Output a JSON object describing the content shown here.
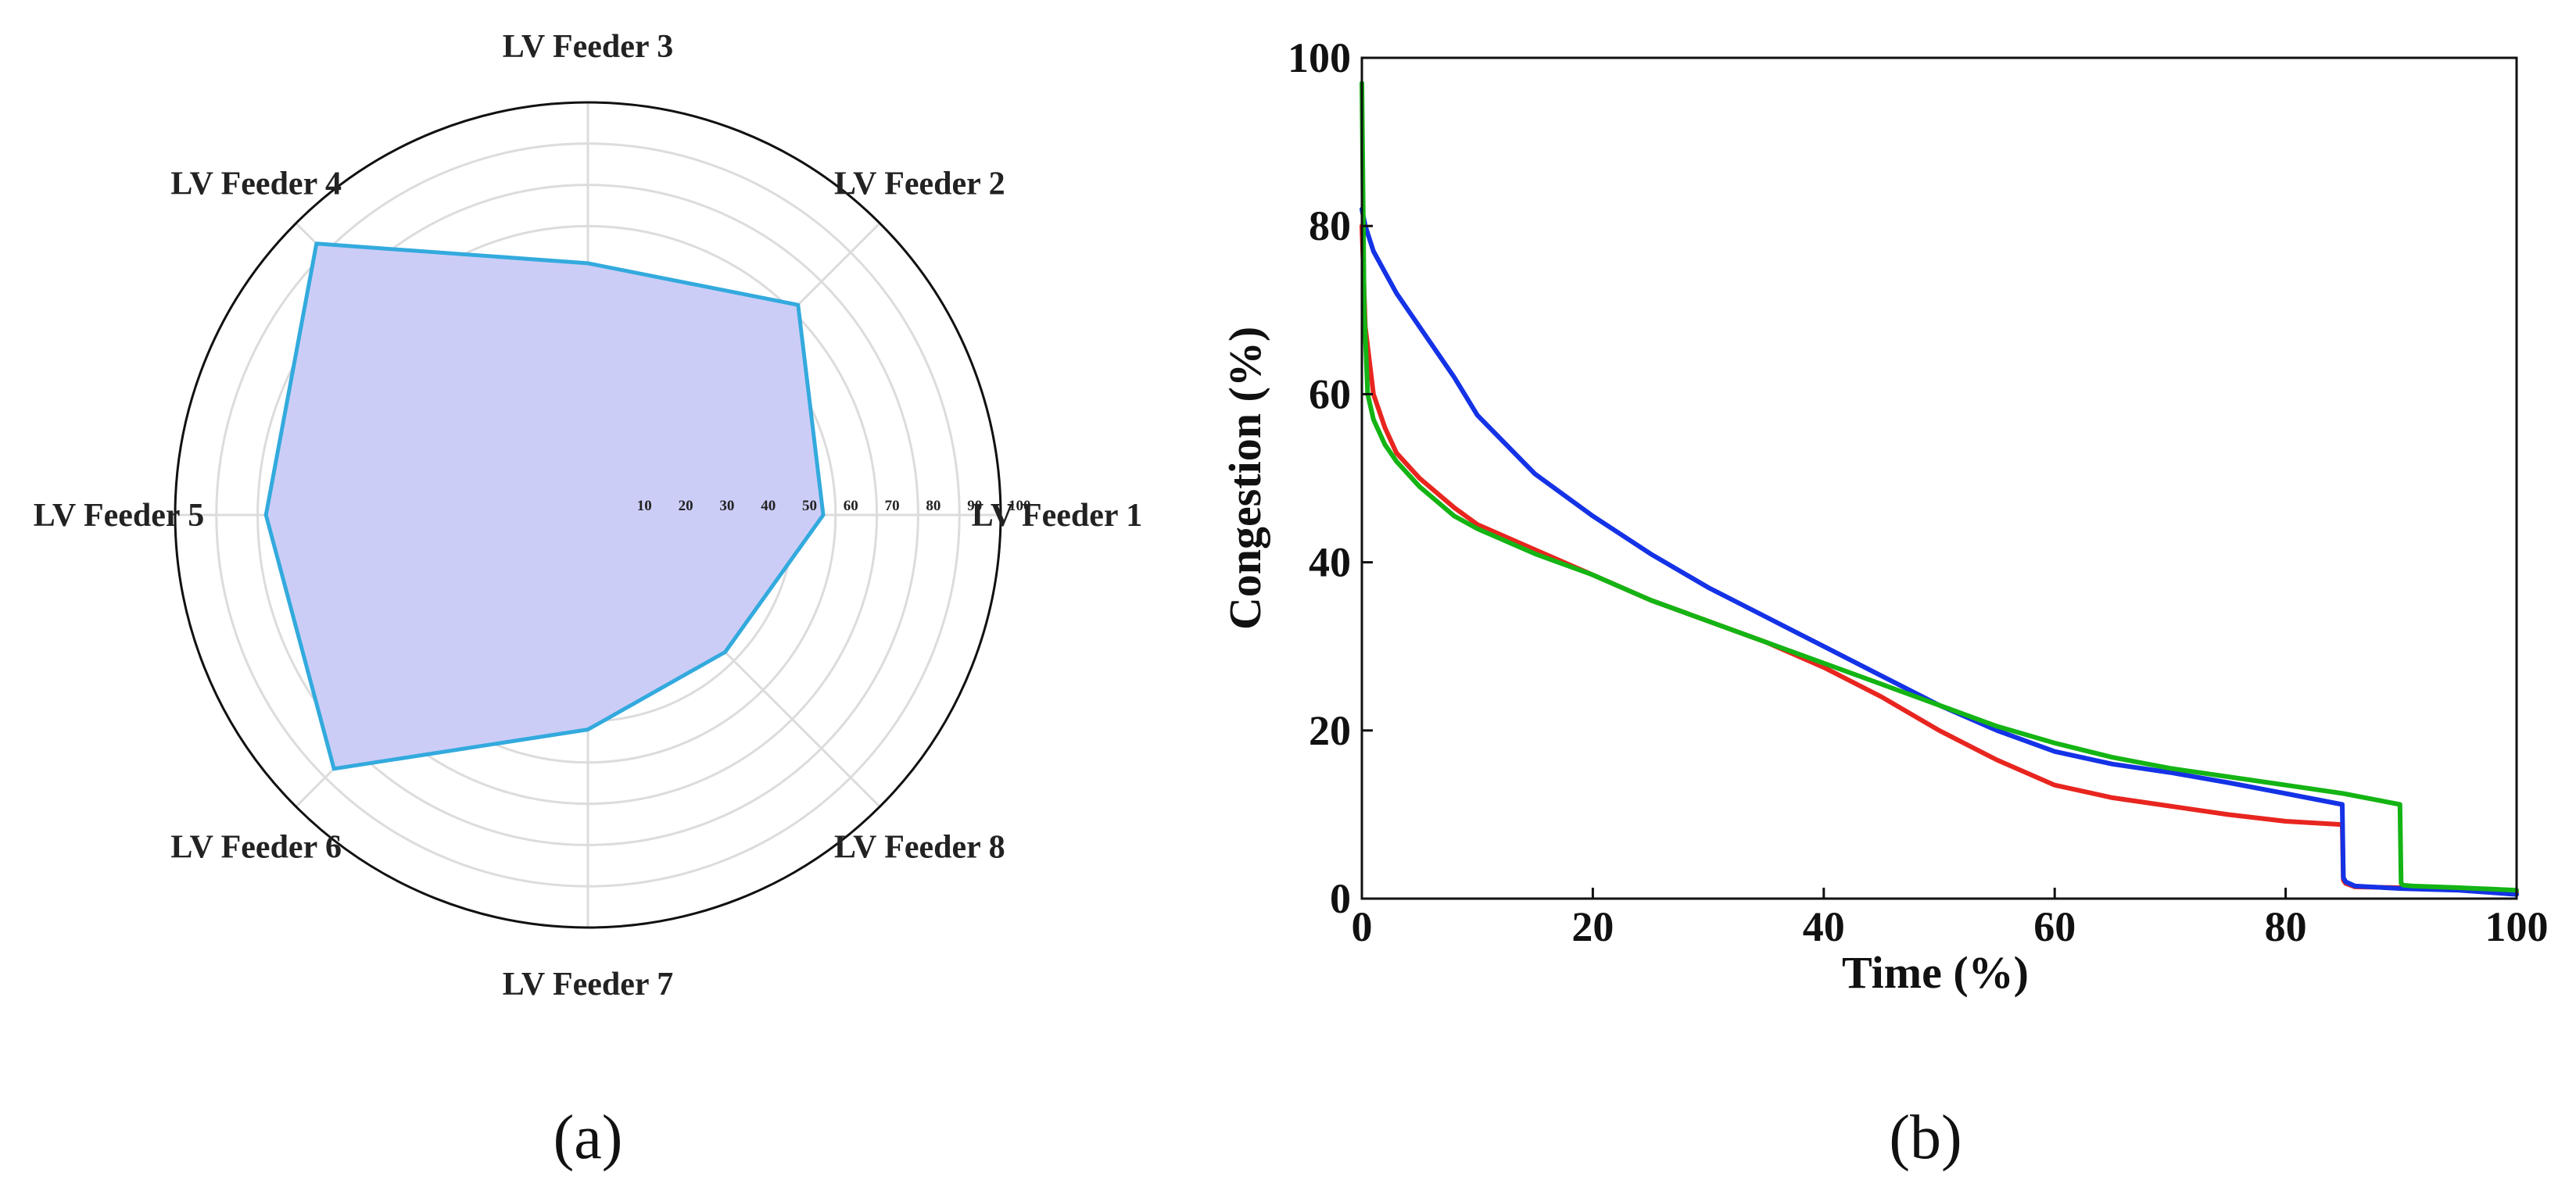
{
  "chart_data": [
    {
      "type": "radar",
      "panel_label": "(a)",
      "title": "",
      "categories": [
        "LV Feeder 1",
        "LV Feeder 2",
        "LV Feeder 3",
        "LV Feeder 4",
        "LV Feeder 5",
        "LV Feeder 6",
        "LV Feeder 7",
        "LV Feeder 8"
      ],
      "values": [
        57,
        72,
        61,
        93,
        78,
        87,
        52,
        47
      ],
      "radial_ticks": [
        10,
        20,
        30,
        40,
        50,
        60,
        70,
        80,
        90,
        100
      ],
      "rlim": [
        0,
        100
      ],
      "fill_color": "#cccdf7",
      "line_color": "#33aadd",
      "grid": true
    },
    {
      "type": "line",
      "panel_label": "(b)",
      "title": "",
      "xlabel": "Time (%)",
      "ylabel": "Congestion (%)",
      "xlim": [
        0,
        100
      ],
      "ylim": [
        0,
        100
      ],
      "xticks": [
        0,
        20,
        40,
        60,
        80,
        100
      ],
      "yticks": [
        0,
        20,
        40,
        60,
        80,
        100
      ],
      "grid": false,
      "series": [
        {
          "name": "red",
          "color": "#e8251f",
          "x": [
            0,
            0.3,
            1,
            2,
            3,
            5,
            8,
            10,
            15,
            20,
            25,
            30,
            35,
            40,
            45,
            50,
            55,
            60,
            65,
            70,
            75,
            80,
            84.9,
            85,
            85.2,
            86,
            90,
            95,
            100
          ],
          "y": [
            80,
            68,
            60,
            56,
            53,
            50,
            46.5,
            44.5,
            41.5,
            38.5,
            35.5,
            33,
            30.5,
            27.5,
            24,
            20,
            16.5,
            13.5,
            12,
            11,
            10,
            9.2,
            8.8,
            2.2,
            1.8,
            1.4,
            1.3,
            1.1,
            0.8
          ]
        },
        {
          "name": "blue",
          "color": "#1432e6",
          "x": [
            0,
            0.3,
            1,
            2,
            3,
            5,
            8,
            10,
            15,
            20,
            25,
            30,
            35,
            40,
            45,
            50,
            55,
            60,
            65,
            70,
            75,
            80,
            84.9,
            85,
            85.2,
            86,
            90,
            95,
            100
          ],
          "y": [
            82,
            80,
            77,
            74.5,
            72,
            68,
            62,
            57.5,
            50.5,
            45.5,
            41,
            37,
            33.5,
            30,
            26.5,
            23,
            20,
            17.5,
            16,
            15,
            13.8,
            12.5,
            11.2,
            2.5,
            2.0,
            1.5,
            1.2,
            1.0,
            0.5
          ]
        },
        {
          "name": "green",
          "color": "#14b414",
          "x": [
            0,
            0.2,
            0.5,
            1,
            2,
            3,
            5,
            8,
            10,
            15,
            20,
            25,
            30,
            35,
            40,
            45,
            50,
            55,
            60,
            65,
            70,
            75,
            80,
            85,
            89.9,
            90,
            90.2,
            91,
            95,
            100
          ],
          "y": [
            97,
            70,
            60,
            57,
            54,
            52,
            49,
            45.5,
            44,
            41,
            38.5,
            35.5,
            33,
            30.5,
            28,
            25.5,
            23,
            20.5,
            18.5,
            16.8,
            15.5,
            14.5,
            13.5,
            12.5,
            11.2,
            1.8,
            1.6,
            1.5,
            1.3,
            1.0
          ]
        }
      ]
    }
  ]
}
